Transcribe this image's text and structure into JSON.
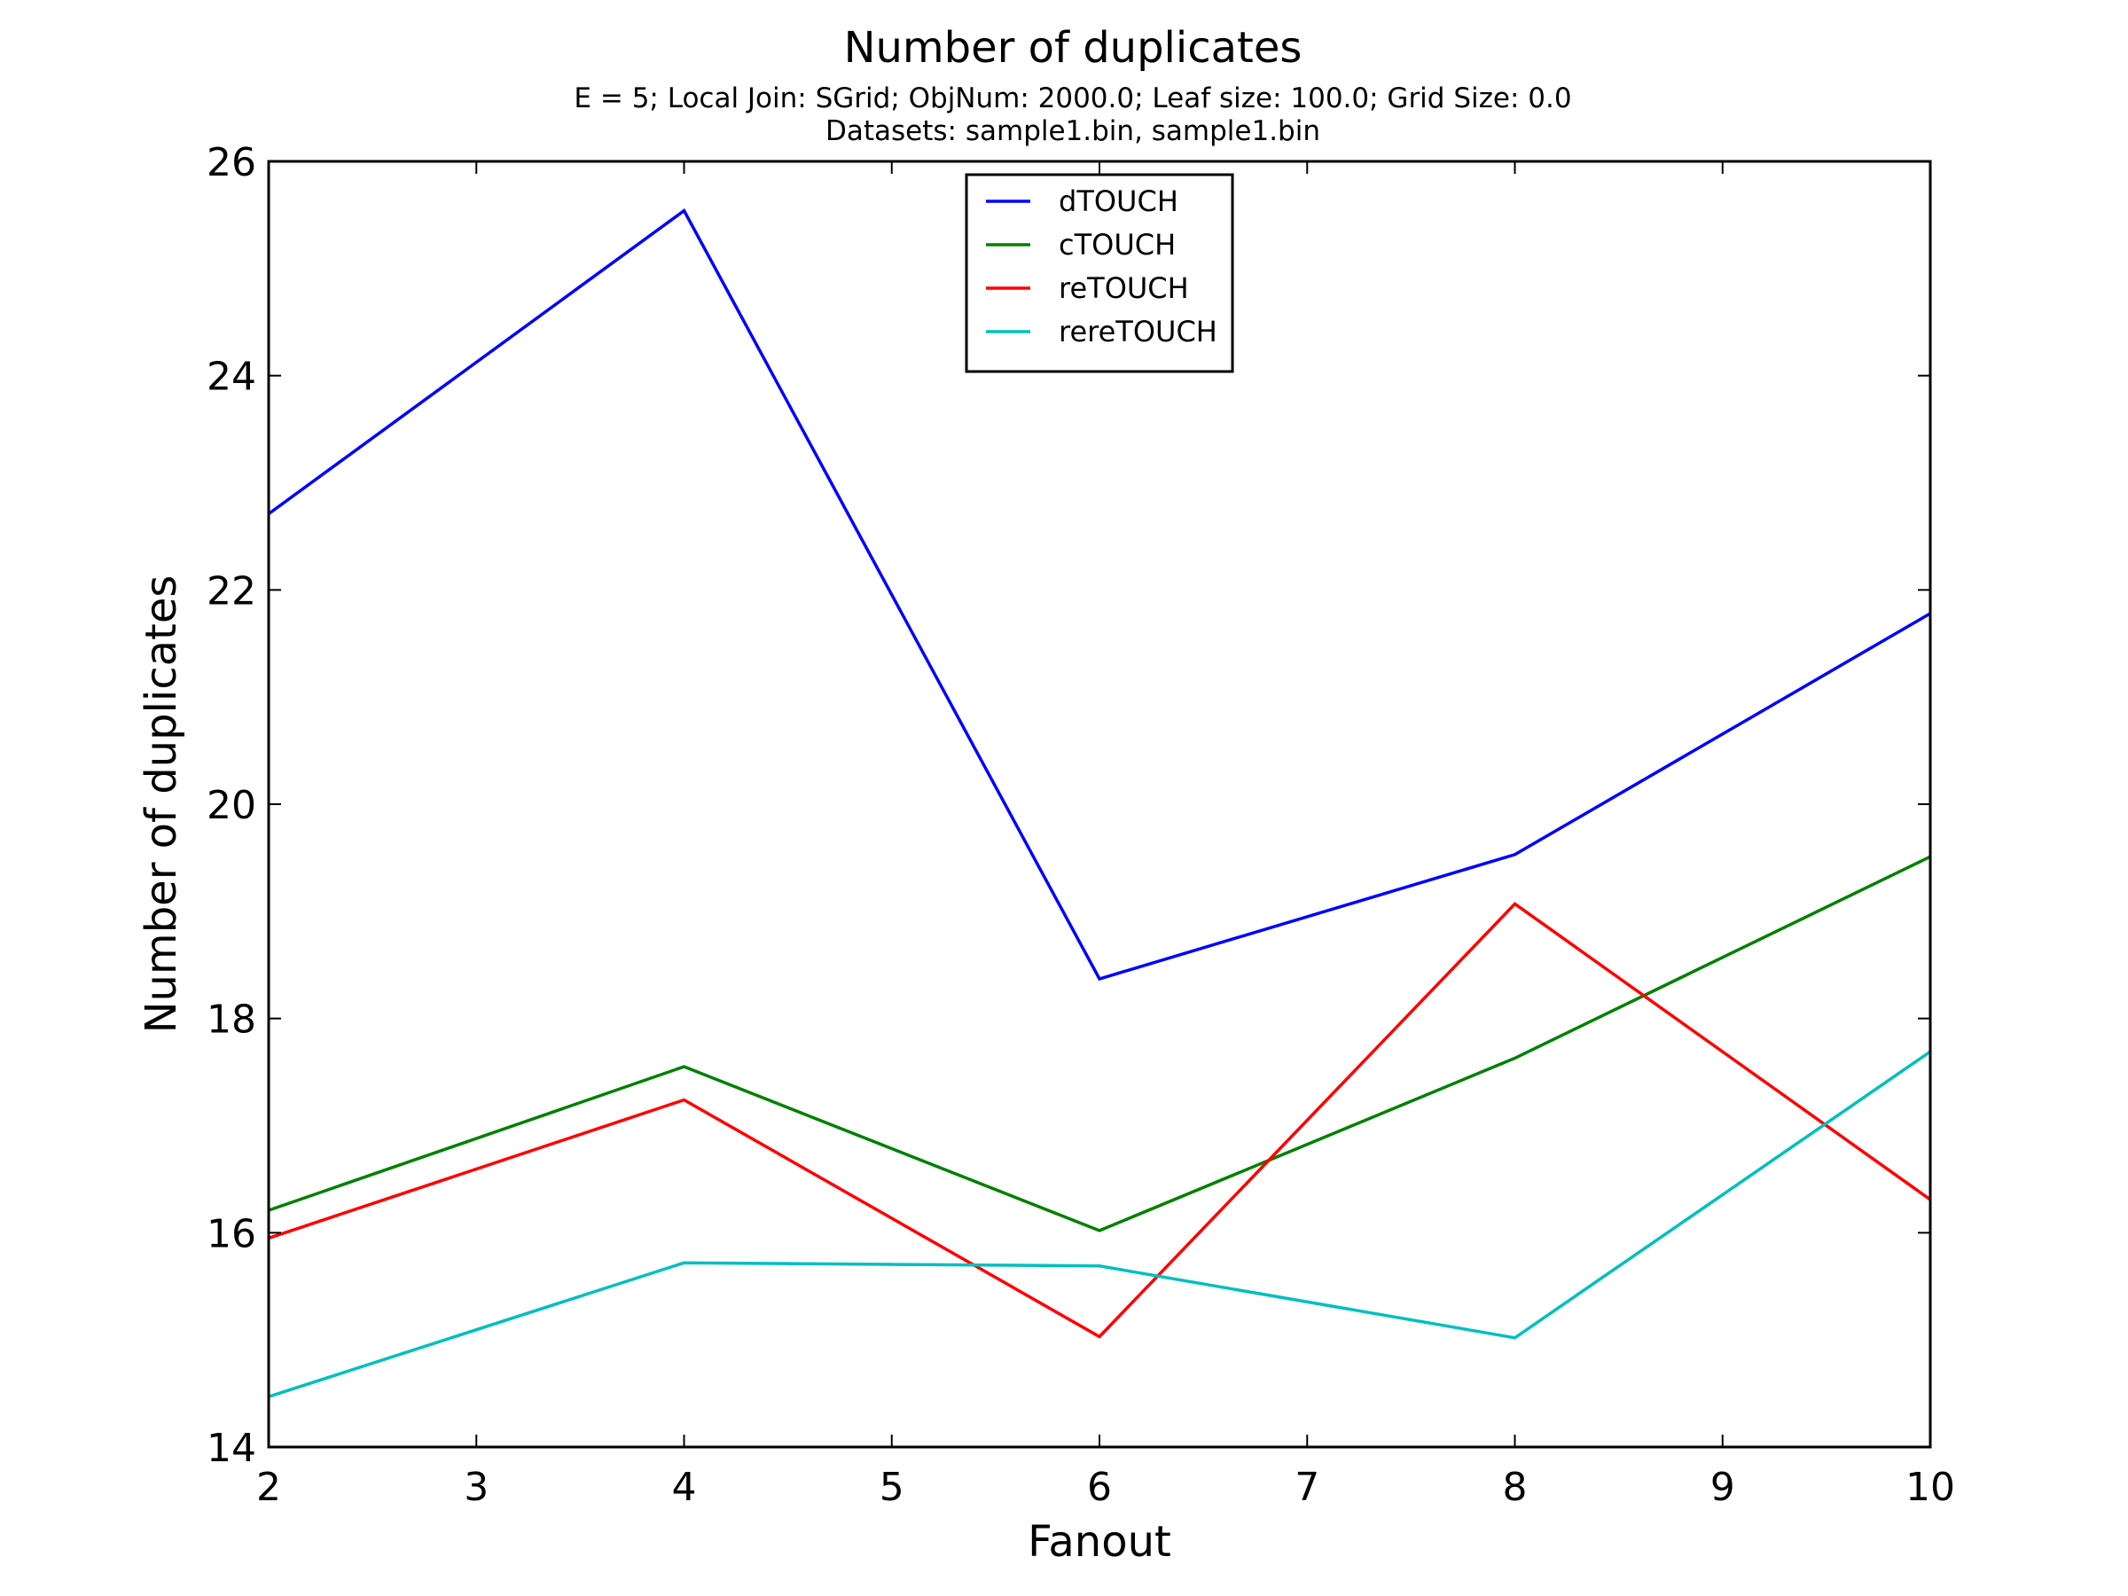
{
  "chart_data": {
    "type": "line",
    "title": "Number of duplicates",
    "subtitle_lines": [
      "E = 5; Local Join: SGrid; ObjNum: 2000.0; Leaf size: 100.0; Grid Size: 0.0",
      "Datasets: sample1.bin, sample1.bin"
    ],
    "xlabel": "Fanout",
    "ylabel": "Number of duplicates",
    "xlim": [
      2,
      10
    ],
    "ylim": [
      14,
      26
    ],
    "xticks": [
      2,
      3,
      4,
      5,
      6,
      7,
      8,
      9,
      10
    ],
    "yticks": [
      14,
      16,
      18,
      20,
      22,
      24,
      26
    ],
    "x": [
      2,
      4,
      6,
      8,
      10
    ],
    "grid": false,
    "legend_position": "upper center",
    "series": [
      {
        "name": "dTOUCH",
        "color": "#0000ff",
        "values": [
          22.71,
          25.54,
          18.37,
          19.53,
          21.78
        ]
      },
      {
        "name": "cTOUCH",
        "color": "#008000",
        "values": [
          16.21,
          17.55,
          16.02,
          17.63,
          19.51
        ]
      },
      {
        "name": "reTOUCH",
        "color": "#ff0000",
        "values": [
          15.95,
          17.24,
          15.03,
          19.07,
          16.31
        ]
      },
      {
        "name": "rereTOUCH",
        "color": "#00bfbf",
        "values": [
          14.47,
          15.72,
          15.69,
          15.02,
          17.69
        ]
      }
    ]
  }
}
